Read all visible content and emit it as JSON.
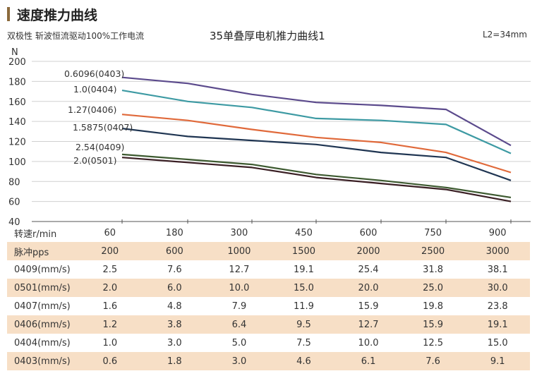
{
  "section_title": "速度推力曲线",
  "subtitle": "双极性  斩波恒流驱动100%工作电流",
  "note": "L2=34mm",
  "chart_data": {
    "type": "line",
    "title": "35单叠厚电机推力曲线1",
    "ylabel": "N",
    "xlabel": "转速r/min",
    "ylim": [
      40,
      200
    ],
    "yticks": [
      40,
      60,
      80,
      100,
      120,
      140,
      160,
      180,
      200
    ],
    "grid": true,
    "categories": [
      "60",
      "180",
      "300",
      "450",
      "600",
      "750",
      "900"
    ],
    "series": [
      {
        "name": "0.6096(0403)",
        "color": "#5b4a8c",
        "values": [
          184,
          178,
          167,
          159,
          156,
          152,
          116
        ]
      },
      {
        "name": "1.0(0404)",
        "color": "#3d9aa3",
        "values": [
          171,
          160,
          154,
          143,
          141,
          137,
          108
        ]
      },
      {
        "name": "1.27(0406)",
        "color": "#e0693a",
        "values": [
          147,
          141,
          132,
          124,
          119,
          109,
          89
        ]
      },
      {
        "name": "1.5875(0407)",
        "color": "#1f3552",
        "values": [
          133,
          125,
          121,
          117,
          109,
          104,
          81
        ]
      },
      {
        "name": "2.54(0409)",
        "color": "#3d5a30",
        "values": [
          107,
          102,
          97,
          87,
          81,
          74,
          64
        ]
      },
      {
        "name": "2.0(0501)",
        "color": "#3a1f24",
        "values": [
          104,
          99,
          94,
          84,
          78,
          72,
          60
        ]
      }
    ]
  },
  "table": {
    "rows": [
      {
        "label": "脉冲pps",
        "values": [
          "200",
          "600",
          "1000",
          "1500",
          "2000",
          "2500",
          "3000"
        ]
      },
      {
        "label": "0409(mm/s)",
        "values": [
          "2.5",
          "7.6",
          "12.7",
          "19.1",
          "25.4",
          "31.8",
          "38.1"
        ]
      },
      {
        "label": "0501(mm/s)",
        "values": [
          "2.0",
          "6.0",
          "10.0",
          "15.0",
          "20.0",
          "25.0",
          "30.0"
        ]
      },
      {
        "label": "0407(mm/s)",
        "values": [
          "1.6",
          "4.8",
          "7.9",
          "11.9",
          "15.9",
          "19.8",
          "23.8"
        ]
      },
      {
        "label": "0406(mm/s)",
        "values": [
          "1.2",
          "3.8",
          "6.4",
          "9.5",
          "12.7",
          "15.9",
          "19.1"
        ]
      },
      {
        "label": "0404(mm/s)",
        "values": [
          "1.0",
          "3.0",
          "5.0",
          "7.5",
          "10.0",
          "12.5",
          "15.0"
        ]
      },
      {
        "label": "0403(mm/s)",
        "values": [
          "0.6",
          "1.8",
          "3.0",
          "4.6",
          "6.1",
          "7.6",
          "9.1"
        ]
      }
    ]
  }
}
